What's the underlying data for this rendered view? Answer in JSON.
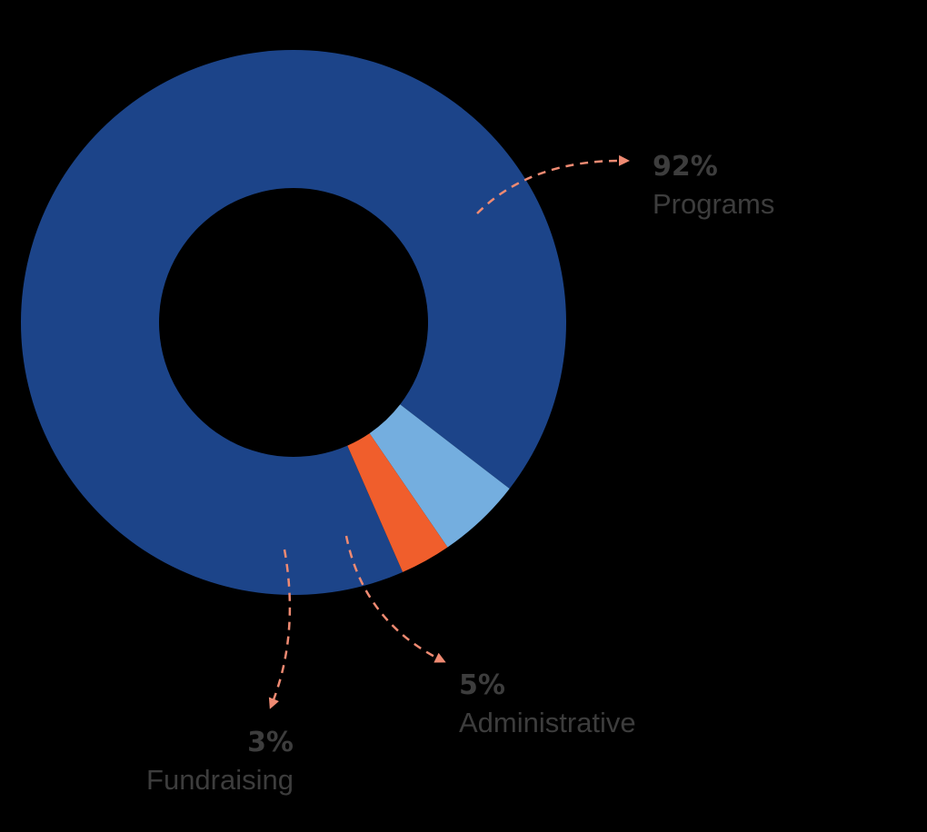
{
  "chart_data": {
    "type": "pie",
    "variant": "donut",
    "title": "",
    "slices": [
      {
        "label": "Programs",
        "value": 92,
        "value_label": "92%",
        "color": "#1c4489"
      },
      {
        "label": "Administrative",
        "value": 5,
        "value_label": "5%",
        "color": "#74aedf"
      },
      {
        "label": "Fundraising",
        "value": 3,
        "value_label": "3%",
        "color": "#f05e2c"
      }
    ],
    "legend": "none"
  },
  "colors": {
    "background": "#000000",
    "label_text": "#3d3d3d",
    "leader_line": "#ef8a72"
  }
}
